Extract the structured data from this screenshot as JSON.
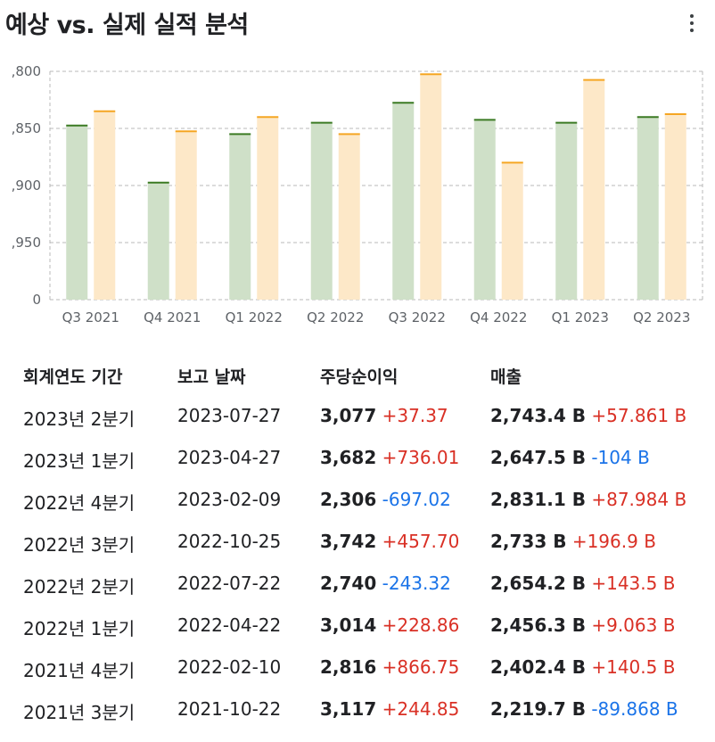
{
  "header": {
    "title": "예상 vs. 실제 실적 분석",
    "menu_icon": "more-vert-icon"
  },
  "colors": {
    "actual_fill": "#cfe0c8",
    "actual_line": "#3b7a23",
    "estimate_fill": "#fde8c8",
    "estimate_line": "#f5a623",
    "positive": "#d93025",
    "negative": "#1a73e8"
  },
  "chart_data": {
    "type": "bar",
    "categories": [
      "Q3 2021",
      "Q4 2021",
      "Q1 2022",
      "Q2 2022",
      "Q3 2022",
      "Q4 2022",
      "Q1 2023",
      "Q2 2023"
    ],
    "y_tick_labels": [
      ",800",
      ",850",
      ",900",
      ",950",
      "0"
    ],
    "ylim": [
      0,
      4
    ],
    "series": [
      {
        "values": [
          3.05,
          2.05,
          2.9,
          3.1,
          3.45,
          3.15,
          3.1,
          3.2
        ]
      },
      {
        "values": [
          3.3,
          2.95,
          3.2,
          2.9,
          3.95,
          2.4,
          3.85,
          3.25
        ]
      }
    ],
    "grid": true
  },
  "table": {
    "headers": {
      "period": "회계연도 기간",
      "report_date": "보고 날짜",
      "eps": "주당순이익",
      "revenue": "매출"
    },
    "rows": [
      {
        "period": "2023년 2분기",
        "date": "2023-07-27",
        "eps": "3,077",
        "eps_diff": "+37.37",
        "eps_sign": "pos",
        "revenue": "2,743.4 B",
        "rev_diff": "+57.861 B",
        "rev_sign": "pos"
      },
      {
        "period": "2023년 1분기",
        "date": "2023-04-27",
        "eps": "3,682",
        "eps_diff": "+736.01",
        "eps_sign": "pos",
        "revenue": "2,647.5 B",
        "rev_diff": "-104 B",
        "rev_sign": "neg"
      },
      {
        "period": "2022년 4분기",
        "date": "2023-02-09",
        "eps": "2,306",
        "eps_diff": "-697.02",
        "eps_sign": "neg",
        "revenue": "2,831.1 B",
        "rev_diff": "+87.984 B",
        "rev_sign": "pos"
      },
      {
        "period": "2022년 3분기",
        "date": "2022-10-25",
        "eps": "3,742",
        "eps_diff": "+457.70",
        "eps_sign": "pos",
        "revenue": "2,733 B",
        "rev_diff": "+196.9 B",
        "rev_sign": "pos"
      },
      {
        "period": "2022년 2분기",
        "date": "2022-07-22",
        "eps": "2,740",
        "eps_diff": "-243.32",
        "eps_sign": "neg",
        "revenue": "2,654.2 B",
        "rev_diff": "+143.5 B",
        "rev_sign": "pos"
      },
      {
        "period": "2022년 1분기",
        "date": "2022-04-22",
        "eps": "3,014",
        "eps_diff": "+228.86",
        "eps_sign": "pos",
        "revenue": "2,456.3 B",
        "rev_diff": "+9.063 B",
        "rev_sign": "pos"
      },
      {
        "period": "2021년 4분기",
        "date": "2022-02-10",
        "eps": "2,816",
        "eps_diff": "+866.75",
        "eps_sign": "pos",
        "revenue": "2,402.4 B",
        "rev_diff": "+140.5 B",
        "rev_sign": "pos"
      },
      {
        "period": "2021년 3분기",
        "date": "2021-10-22",
        "eps": "3,117",
        "eps_diff": "+244.85",
        "eps_sign": "pos",
        "revenue": "2,219.7 B",
        "rev_diff": "-89.868 B",
        "rev_sign": "neg"
      }
    ]
  }
}
